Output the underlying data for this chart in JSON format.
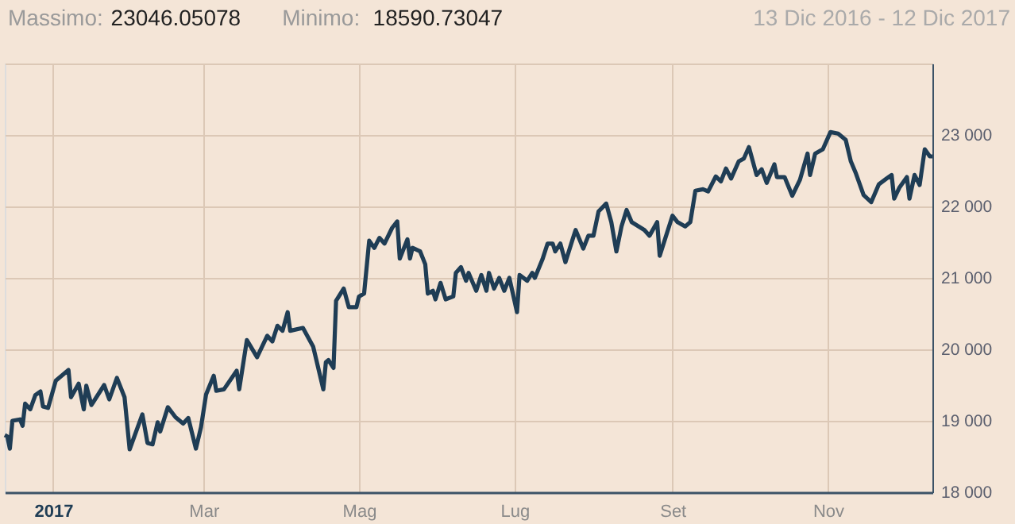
{
  "chart_data": {
    "type": "line",
    "annotations": [
      "Massimo: 23046.05078",
      "Minimo: 18590.73047",
      "13 Dic 2016 - 12 Dic 2017"
    ],
    "x": [
      "2016-12-13",
      "2016-12-14",
      "2016-12-15",
      "2016-12-16",
      "2016-12-19",
      "2016-12-20",
      "2016-12-21",
      "2016-12-23",
      "2016-12-25",
      "2016-12-27",
      "2016-12-28",
      "2016-12-30",
      "2017-01-02",
      "2017-01-07",
      "2017-01-08",
      "2017-01-11",
      "2017-01-13",
      "2017-01-14",
      "2017-01-16",
      "2017-01-21",
      "2017-01-23",
      "2017-01-26",
      "2017-01-29",
      "2017-01-31",
      "2017-02-05",
      "2017-02-07",
      "2017-02-09",
      "2017-02-11",
      "2017-02-12",
      "2017-02-15",
      "2017-02-18",
      "2017-02-21",
      "2017-02-23",
      "2017-02-26",
      "2017-02-28",
      "2017-03-02",
      "2017-03-05",
      "2017-03-06",
      "2017-03-09",
      "2017-03-14",
      "2017-03-15",
      "2017-03-18",
      "2017-03-22",
      "2017-03-26",
      "2017-03-28",
      "2017-03-30",
      "2017-04-01",
      "2017-04-03",
      "2017-04-04",
      "2017-04-09",
      "2017-04-13",
      "2017-04-17",
      "2017-04-18",
      "2017-04-19",
      "2017-04-21",
      "2017-04-22",
      "2017-04-25",
      "2017-04-27",
      "2017-04-30",
      "2017-05-01",
      "2017-05-03",
      "2017-05-05",
      "2017-05-07",
      "2017-05-09",
      "2017-05-11",
      "2017-05-14",
      "2017-05-16",
      "2017-05-17",
      "2017-05-20",
      "2017-05-21",
      "2017-05-22",
      "2017-05-25",
      "2017-05-27",
      "2017-05-28",
      "2017-05-30",
      "2017-05-31",
      "2017-06-02",
      "2017-06-04",
      "2017-06-07",
      "2017-06-08",
      "2017-06-10",
      "2017-06-12",
      "2017-06-13",
      "2017-06-16",
      "2017-06-18",
      "2017-06-20",
      "2017-06-21",
      "2017-06-23",
      "2017-06-25",
      "2017-06-27",
      "2017-06-29",
      "2017-07-02",
      "2017-07-03",
      "2017-07-06",
      "2017-07-08",
      "2017-07-09",
      "2017-07-12",
      "2017-07-14",
      "2017-07-16",
      "2017-07-17",
      "2017-07-19",
      "2017-07-21",
      "2017-07-24",
      "2017-07-25",
      "2017-07-28",
      "2017-07-30",
      "2017-08-01",
      "2017-08-03",
      "2017-08-06",
      "2017-08-08",
      "2017-08-10",
      "2017-08-12",
      "2017-08-14",
      "2017-08-16",
      "2017-08-21",
      "2017-08-23",
      "2017-08-26",
      "2017-08-27",
      "2017-09-01",
      "2017-09-03",
      "2017-09-06",
      "2017-09-08",
      "2017-09-10",
      "2017-09-13",
      "2017-09-15",
      "2017-09-18",
      "2017-09-20",
      "2017-09-22",
      "2017-09-24",
      "2017-09-27",
      "2017-09-29",
      "2017-10-01",
      "2017-10-04",
      "2017-10-06",
      "2017-10-08",
      "2017-10-11",
      "2017-10-12",
      "2017-10-15",
      "2017-10-18",
      "2017-10-21",
      "2017-10-24",
      "2017-10-25",
      "2017-10-27",
      "2017-10-30",
      "2017-11-02",
      "2017-11-05",
      "2017-11-08",
      "2017-11-10",
      "2017-11-12",
      "2017-11-15",
      "2017-11-18",
      "2017-11-21",
      "2017-11-24",
      "2017-11-26",
      "2017-11-27",
      "2017-11-29",
      "2017-12-02",
      "2017-12-03",
      "2017-12-05",
      "2017-12-07",
      "2017-12-09",
      "2017-12-11",
      "2017-12-12"
    ],
    "series": [
      {
        "color": "#1f3d55",
        "values": [
          18800,
          18780,
          18610,
          19000,
          19020,
          18930,
          19240,
          19160,
          19360,
          19410,
          19200,
          19180,
          19560,
          19710,
          19330,
          19520,
          19160,
          19490,
          19220,
          19500,
          19300,
          19600,
          19330,
          18600,
          19090,
          18690,
          18670,
          18980,
          18850,
          19190,
          19050,
          18960,
          19040,
          18610,
          18910,
          19370,
          19630,
          19420,
          19440,
          19700,
          19440,
          20130,
          19890,
          20190,
          20110,
          20330,
          20260,
          20520,
          20260,
          20300,
          20040,
          19440,
          19820,
          19850,
          19740,
          20680,
          20850,
          20590,
          20590,
          20740,
          20780,
          21520,
          21420,
          21560,
          21480,
          21700,
          21790,
          21270,
          21540,
          21270,
          21420,
          21370,
          21190,
          20780,
          20820,
          20700,
          20930,
          20700,
          20740,
          21070,
          21150,
          20960,
          21070,
          20820,
          21040,
          20820,
          21070,
          20850,
          21000,
          20820,
          21000,
          20520,
          21040,
          20960,
          21070,
          21000,
          21260,
          21480,
          21480,
          21370,
          21480,
          21220,
          21560,
          21670,
          21410,
          21590,
          21590,
          21930,
          22040,
          21780,
          21370,
          21720,
          21950,
          21780,
          21670,
          21590,
          21780,
          21310,
          21870,
          21780,
          21720,
          21780,
          22220,
          22240,
          22210,
          22420,
          22350,
          22530,
          22390,
          22630,
          22670,
          22830,
          22440,
          22520,
          22330,
          22590,
          22410,
          22410,
          22150,
          22370,
          22740,
          22440,
          22740,
          22800,
          23040,
          23020,
          22930,
          22630,
          22460,
          22160,
          22060,
          22310,
          22390,
          22440,
          22110,
          22260,
          22410,
          22110,
          22440,
          22300,
          22800,
          22700,
          22700
        ]
      }
    ],
    "xlim": [
      "2016-12-13",
      "2017-12-12"
    ],
    "xticks": [
      {
        "value": "2017-01-01",
        "label": "2017"
      },
      {
        "value": "2017-03-01",
        "label": "Mar"
      },
      {
        "value": "2017-05-01",
        "label": "Mag"
      },
      {
        "value": "2017-07-01",
        "label": "Lug"
      },
      {
        "value": "2017-09-01",
        "label": "Set"
      },
      {
        "value": "2017-11-01",
        "label": "Nov"
      }
    ],
    "ylim": [
      18000,
      24000
    ],
    "yticks": [
      {
        "value": 18000,
        "label": "18 000"
      },
      {
        "value": 19000,
        "label": "19 000"
      },
      {
        "value": 20000,
        "label": "20 000"
      },
      {
        "value": 21000,
        "label": "21 000"
      },
      {
        "value": 22000,
        "label": "22 000"
      },
      {
        "value": 23000,
        "label": "23 000"
      },
      {
        "value": 24000,
        "label": null
      }
    ],
    "grid": true,
    "marker": "none",
    "line_style": "solid"
  }
}
